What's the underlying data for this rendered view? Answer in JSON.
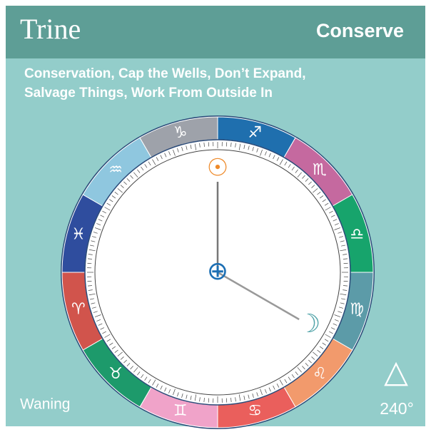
{
  "header": {
    "title": "Trine",
    "phase": "Conserve"
  },
  "description": [
    "Conservation, Cap the Wells, Don’t Expand,",
    "Salvage Things, Work From Outside In"
  ],
  "wheel": {
    "signs": [
      "♐",
      "♏",
      "♎",
      "♍",
      "♌",
      "♋",
      "♊",
      "♉",
      "♈",
      "♓",
      "♒",
      "♑"
    ],
    "sun": "☉",
    "earth": "⊕",
    "moon": "☽"
  },
  "footer": {
    "status": "Waning",
    "aspect_symbol": "△",
    "angle": "240°"
  }
}
